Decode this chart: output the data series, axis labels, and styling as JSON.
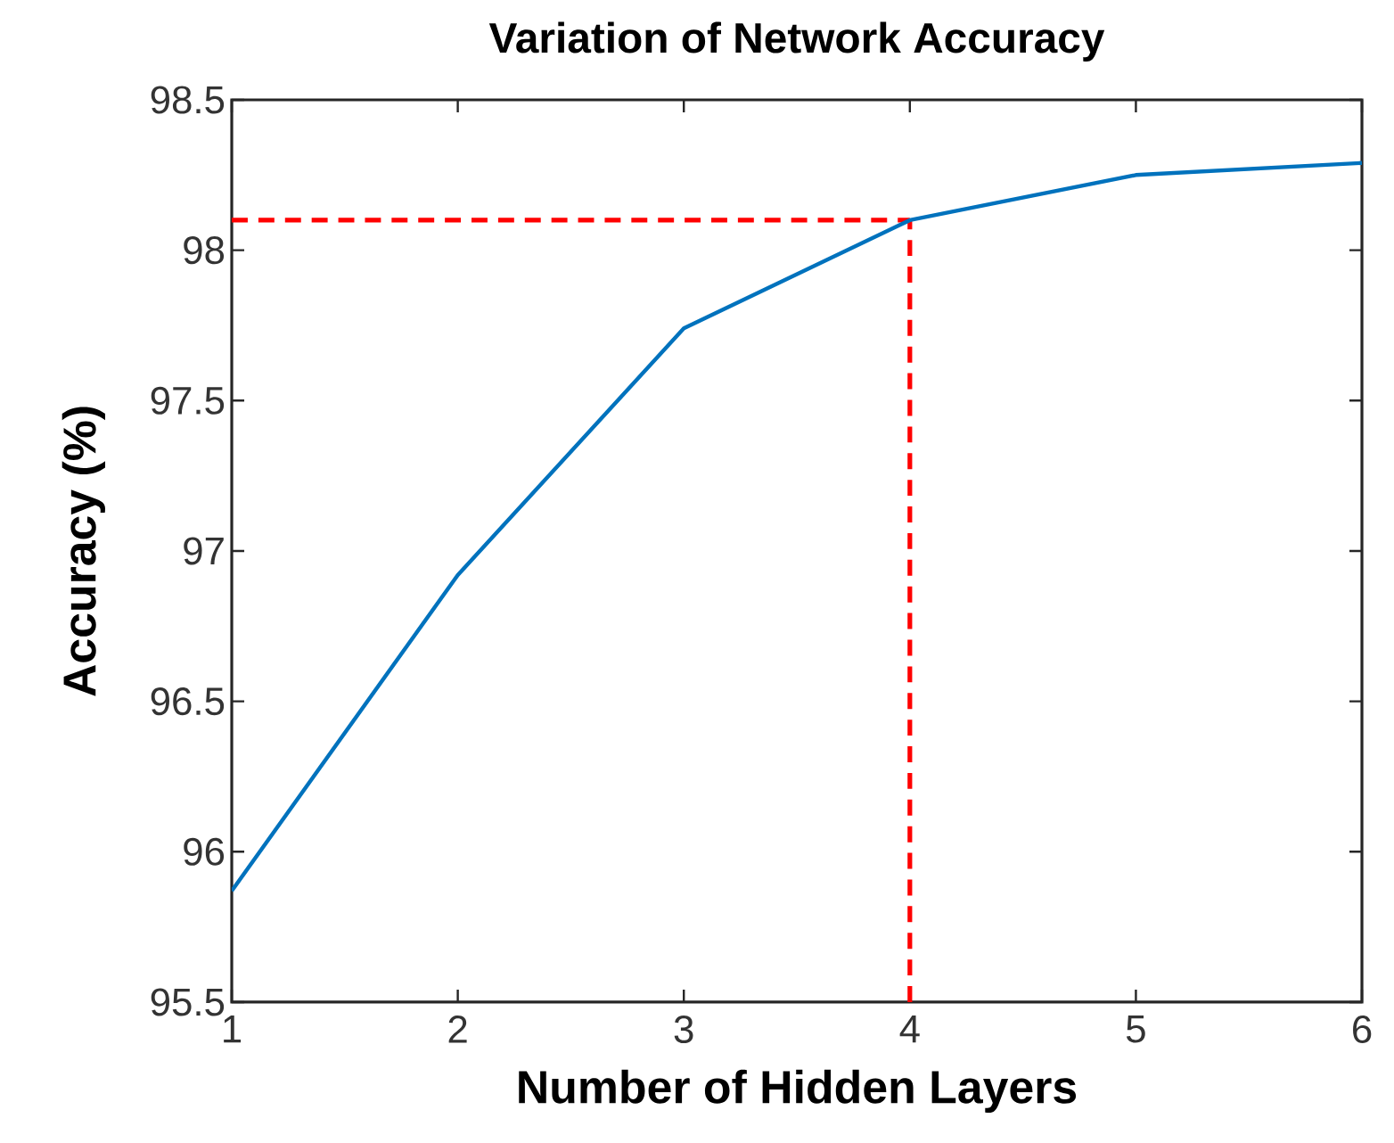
{
  "chart_data": {
    "type": "line",
    "title": "Variation of Network Accuracy",
    "xlabel": "Number of Hidden Layers",
    "ylabel": "Accuracy (%)",
    "x": [
      1,
      2,
      3,
      4,
      5,
      6
    ],
    "series": [
      {
        "color": "#0072bd",
        "values": [
          95.87,
          96.92,
          97.74,
          98.1,
          98.25,
          98.29
        ]
      }
    ],
    "xlim": [
      1,
      6
    ],
    "xticks": [
      1,
      2,
      3,
      4,
      5,
      6
    ],
    "ylim": [
      95.5,
      98.5
    ],
    "yticks": [
      95.5,
      96,
      96.5,
      97,
      97.5,
      98,
      98.5
    ],
    "ref_lines": [
      {
        "axis": "y",
        "value": 98.1,
        "color": "#ff0000",
        "line_style": "dashed"
      },
      {
        "axis": "x",
        "value": 4,
        "color": "#ff0000",
        "line_style": "dashed"
      }
    ],
    "grid": false,
    "marker": "none",
    "line_style": "solid"
  }
}
